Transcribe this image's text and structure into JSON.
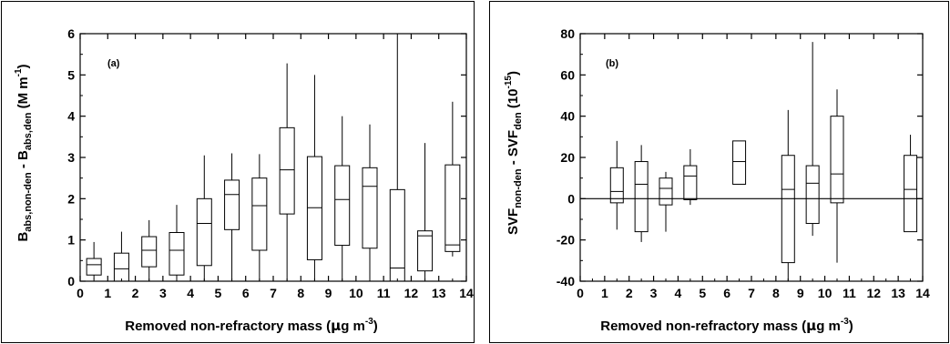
{
  "chart_data": [
    {
      "type": "boxplot",
      "panel_label": "(a)",
      "xlabel": "Removed non-refractory mass (µg m-3)",
      "ylabel": "Babs,non-den - Babs,den (M m-1)",
      "xlim": [
        0,
        14
      ],
      "ylim": [
        0,
        6
      ],
      "xticks": [
        0,
        1,
        2,
        3,
        4,
        5,
        6,
        7,
        8,
        9,
        10,
        11,
        12,
        13,
        14
      ],
      "yticks": [
        0,
        1,
        2,
        3,
        4,
        5,
        6
      ],
      "boxes": [
        {
          "x": 0.5,
          "min": 0.05,
          "q1": 0.15,
          "median": 0.4,
          "q3": 0.55,
          "max": 0.95
        },
        {
          "x": 1.5,
          "min": 0.0,
          "q1": 0.0,
          "median": 0.3,
          "q3": 0.68,
          "max": 1.2
        },
        {
          "x": 2.5,
          "min": 0.0,
          "q1": 0.35,
          "median": 0.75,
          "q3": 1.08,
          "max": 1.48
        },
        {
          "x": 3.5,
          "min": 0.0,
          "q1": 0.15,
          "median": 0.75,
          "q3": 1.18,
          "max": 1.85
        },
        {
          "x": 4.5,
          "min": 0.0,
          "q1": 0.38,
          "median": 1.4,
          "q3": 2.0,
          "max": 3.05
        },
        {
          "x": 5.5,
          "min": 0.0,
          "q1": 1.25,
          "median": 2.1,
          "q3": 2.45,
          "max": 3.1
        },
        {
          "x": 6.5,
          "min": 0.0,
          "q1": 0.75,
          "median": 1.83,
          "q3": 2.5,
          "max": 3.08
        },
        {
          "x": 7.5,
          "min": 0.0,
          "q1": 1.63,
          "median": 2.7,
          "q3": 3.72,
          "max": 5.28
        },
        {
          "x": 8.5,
          "min": 0.0,
          "q1": 0.52,
          "median": 1.78,
          "q3": 3.02,
          "max": 5.0
        },
        {
          "x": 9.5,
          "min": 0.0,
          "q1": 0.87,
          "median": 1.98,
          "q3": 2.8,
          "max": 4.0
        },
        {
          "x": 10.5,
          "min": 0.0,
          "q1": 0.8,
          "median": 2.3,
          "q3": 2.75,
          "max": 3.8
        },
        {
          "x": 11.5,
          "min": 0.0,
          "q1": 0.0,
          "median": 0.32,
          "q3": 2.22,
          "max": 6.0
        },
        {
          "x": 12.5,
          "min": 0.0,
          "q1": 0.25,
          "median": 1.1,
          "q3": 1.22,
          "max": 3.35
        },
        {
          "x": 13.5,
          "min": 0.6,
          "q1": 0.72,
          "median": 0.88,
          "q3": 2.82,
          "max": 4.35
        }
      ]
    },
    {
      "type": "boxplot",
      "panel_label": "(b)",
      "xlabel": "Removed non-refractory mass (µg m-3)",
      "ylabel": "SVFnon-den - SVFden (10-15)",
      "xlim": [
        0,
        14
      ],
      "ylim": [
        -40,
        80
      ],
      "xticks": [
        0,
        1,
        2,
        3,
        4,
        5,
        6,
        7,
        8,
        9,
        10,
        11,
        12,
        13,
        14
      ],
      "yticks": [
        -40,
        -20,
        0,
        20,
        40,
        60,
        80
      ],
      "reference_line": 0,
      "boxes": [
        {
          "x": 1.5,
          "min": -15,
          "q1": -2,
          "median": 3.5,
          "q3": 15,
          "max": 28
        },
        {
          "x": 2.5,
          "min": -21,
          "q1": -16,
          "median": 7,
          "q3": 18,
          "max": 26
        },
        {
          "x": 3.5,
          "min": -16,
          "q1": -3,
          "median": 5,
          "q3": 10,
          "max": 13
        },
        {
          "x": 4.5,
          "min": -3,
          "q1": -0.5,
          "median": 11,
          "q3": 16,
          "max": 24
        },
        {
          "x": 6.5,
          "min": 7,
          "q1": 7,
          "median": 18,
          "q3": 28,
          "max": 28
        },
        {
          "x": 8.5,
          "min": -40,
          "q1": -31,
          "median": 4.5,
          "q3": 21,
          "max": 43
        },
        {
          "x": 9.5,
          "min": -18,
          "q1": -12,
          "median": 7.5,
          "q3": 16,
          "max": 76
        },
        {
          "x": 10.5,
          "min": -31,
          "q1": -2,
          "median": 12,
          "q3": 40,
          "max": 53
        },
        {
          "x": 13.5,
          "min": -16,
          "q1": -16,
          "median": 4.5,
          "q3": 21,
          "max": 31
        }
      ]
    }
  ]
}
